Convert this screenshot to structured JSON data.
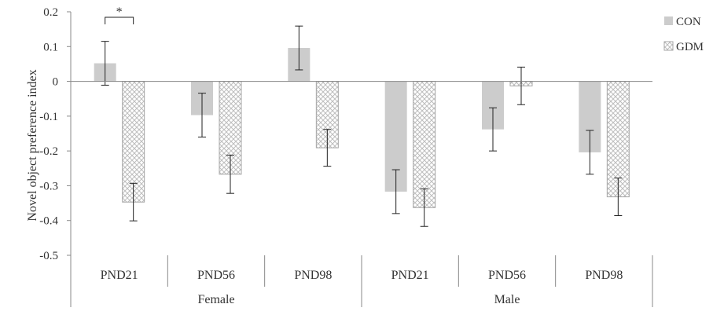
{
  "chart_data": {
    "type": "bar",
    "title": "",
    "xlabel": "",
    "ylabel": "Novel object preference index",
    "ylim": [
      -0.5,
      0.2
    ],
    "yticks": [
      "0.2",
      "0.1",
      "0",
      "-0.1",
      "-0.2",
      "-0.3",
      "-0.4",
      "-0.5"
    ],
    "grid": false,
    "legend_position": "top-right",
    "groups": [
      {
        "label": "Female",
        "categories": [
          "PND21",
          "PND56",
          "PND98"
        ]
      },
      {
        "label": "Male",
        "categories": [
          "PND21",
          "PND56",
          "PND98"
        ]
      }
    ],
    "categories": [
      "PND21",
      "PND56",
      "PND98",
      "PND21",
      "PND56",
      "PND98"
    ],
    "series": [
      {
        "name": "CON",
        "color": "#cccccc",
        "pattern": "solid",
        "values": [
          0.052,
          -0.097,
          0.096,
          -0.317,
          -0.138,
          -0.204
        ],
        "errors": [
          0.063,
          0.063,
          0.063,
          0.063,
          0.062,
          0.063
        ]
      },
      {
        "name": "GDM",
        "color": "#cccccc",
        "pattern": "crosshatch",
        "values": [
          -0.347,
          -0.267,
          -0.191,
          -0.363,
          -0.013,
          -0.332
        ],
        "errors": [
          0.054,
          0.055,
          0.053,
          0.054,
          0.054,
          0.054
        ]
      }
    ],
    "annotations": [
      {
        "text": "*",
        "category_index": 0,
        "spans_series": [
          "CON",
          "GDM"
        ]
      }
    ]
  }
}
